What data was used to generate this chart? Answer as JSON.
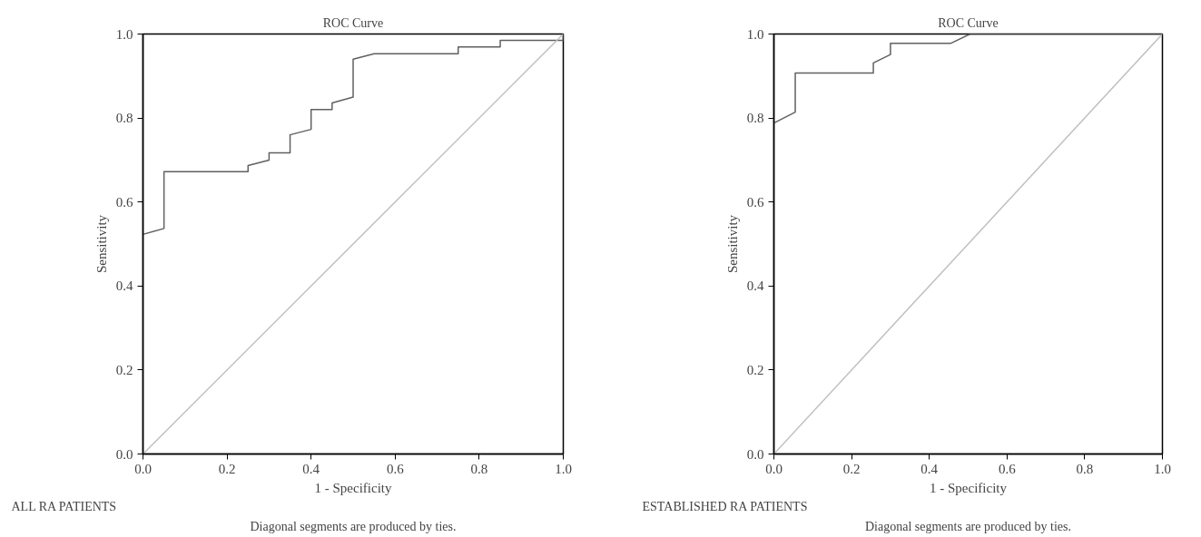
{
  "chart_data": [
    {
      "type": "line",
      "title": "ROC Curve",
      "xlabel": "1 - Specificity",
      "ylabel": "Sensitivity",
      "annotations": [
        "ALL RA PATIENTS",
        "Diagonal segments are produced by ties."
      ],
      "xlim": [
        0,
        1
      ],
      "ylim": [
        0,
        1
      ],
      "xticks": [
        {
          "value": 0,
          "label": "0.0"
        },
        {
          "value": 0.2,
          "label": "0.2"
        },
        {
          "value": 0.4,
          "label": "0.4"
        },
        {
          "value": 0.6,
          "label": "0.6"
        },
        {
          "value": 0.8,
          "label": "0.8"
        },
        {
          "value": 1,
          "label": "1.0"
        }
      ],
      "yticks": [
        {
          "value": 0,
          "label": "0.0"
        },
        {
          "value": 0.2,
          "label": "0.2"
        },
        {
          "value": 0.4,
          "label": "0.4"
        },
        {
          "value": 0.6,
          "label": "0.6"
        },
        {
          "value": 0.8,
          "label": "0.8"
        },
        {
          "value": 1,
          "label": "1.0"
        }
      ],
      "grid": false,
      "line_style": "solid",
      "series": [
        {
          "color": "#606060",
          "x": [
            0,
            0.05,
            0.05,
            0.25,
            0.25,
            0.3,
            0.3,
            0.35,
            0.35,
            0.4,
            0.4,
            0.45,
            0.45,
            0.5,
            0.5,
            0.55,
            0.75,
            0.75,
            0.85,
            0.85,
            1.0,
            1.0
          ],
          "values": [
            0.523,
            0.537,
            0.672,
            0.672,
            0.687,
            0.7,
            0.717,
            0.717,
            0.76,
            0.773,
            0.82,
            0.82,
            0.836,
            0.85,
            0.94,
            0.953,
            0.953,
            0.969,
            0.969,
            0.985,
            0.985,
            1.0
          ]
        },
        {
          "color": "#c0c0c0",
          "x": [
            0,
            1
          ],
          "values": [
            0,
            1
          ]
        }
      ]
    },
    {
      "type": "line",
      "title": "ROC Curve",
      "xlabel": "1 - Specificity",
      "ylabel": "Sensitivity",
      "annotations": [
        "ESTABLISHED RA PATIENTS",
        "Diagonal segments are produced by ties."
      ],
      "xlim": [
        0,
        1
      ],
      "ylim": [
        0,
        1
      ],
      "xticks": [
        {
          "value": 0,
          "label": "0.0"
        },
        {
          "value": 0.2,
          "label": "0.2"
        },
        {
          "value": 0.4,
          "label": "0.4"
        },
        {
          "value": 0.6,
          "label": "0.6"
        },
        {
          "value": 0.8,
          "label": "0.8"
        },
        {
          "value": 1,
          "label": "1.0"
        }
      ],
      "yticks": [
        {
          "value": 0,
          "label": "0.0"
        },
        {
          "value": 0.2,
          "label": "0.2"
        },
        {
          "value": 0.4,
          "label": "0.4"
        },
        {
          "value": 0.6,
          "label": "0.6"
        },
        {
          "value": 0.8,
          "label": "0.8"
        },
        {
          "value": 1,
          "label": "1.0"
        }
      ],
      "grid": false,
      "line_style": "solid",
      "series": [
        {
          "color": "#606060",
          "x": [
            0,
            0.055,
            0.055,
            0.256,
            0.256,
            0.3,
            0.3,
            0.456,
            0.505,
            1.0
          ],
          "values": [
            0.788,
            0.814,
            0.907,
            0.907,
            0.931,
            0.951,
            0.978,
            0.978,
            1.0,
            1.0
          ]
        },
        {
          "color": "#c0c0c0",
          "x": [
            0,
            1
          ],
          "values": [
            0,
            1
          ]
        }
      ]
    }
  ]
}
